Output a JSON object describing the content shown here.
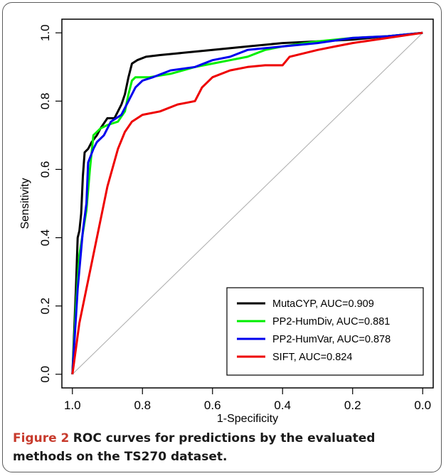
{
  "chart_data": {
    "type": "line",
    "title": "",
    "xlabel": "1-Specificity",
    "ylabel": "Sensitivity",
    "xlim": [
      1.0,
      0.0
    ],
    "ylim": [
      0.0,
      1.0
    ],
    "xticks": [
      "1.0",
      "0.8",
      "0.6",
      "0.4",
      "0.2",
      "0.0"
    ],
    "yticks": [
      "0.0",
      "0.2",
      "0.4",
      "0.6",
      "0.8",
      "1.0"
    ],
    "grid": false,
    "diagonal_reference": true,
    "legend_position": "bottom-right",
    "series": [
      {
        "name": "MutaCYP, AUC=0.909",
        "color": "#000000",
        "points": [
          [
            1.0,
            0.0
          ],
          [
            0.99,
            0.25
          ],
          [
            0.985,
            0.4
          ],
          [
            0.98,
            0.42
          ],
          [
            0.975,
            0.47
          ],
          [
            0.97,
            0.58
          ],
          [
            0.965,
            0.65
          ],
          [
            0.955,
            0.66
          ],
          [
            0.945,
            0.68
          ],
          [
            0.93,
            0.7
          ],
          [
            0.92,
            0.72
          ],
          [
            0.9,
            0.75
          ],
          [
            0.88,
            0.75
          ],
          [
            0.87,
            0.77
          ],
          [
            0.86,
            0.79
          ],
          [
            0.85,
            0.82
          ],
          [
            0.84,
            0.87
          ],
          [
            0.83,
            0.91
          ],
          [
            0.815,
            0.92
          ],
          [
            0.79,
            0.93
          ],
          [
            0.75,
            0.935
          ],
          [
            0.7,
            0.94
          ],
          [
            0.6,
            0.95
          ],
          [
            0.5,
            0.96
          ],
          [
            0.4,
            0.97
          ],
          [
            0.3,
            0.975
          ],
          [
            0.2,
            0.98
          ],
          [
            0.1,
            0.99
          ],
          [
            0.0,
            1.0
          ]
        ]
      },
      {
        "name": "PP2-HumDiv, AUC=0.881",
        "color": "#00ee00",
        "points": [
          [
            1.0,
            0.0
          ],
          [
            0.99,
            0.2
          ],
          [
            0.98,
            0.35
          ],
          [
            0.96,
            0.48
          ],
          [
            0.95,
            0.6
          ],
          [
            0.94,
            0.7
          ],
          [
            0.92,
            0.72
          ],
          [
            0.9,
            0.73
          ],
          [
            0.87,
            0.74
          ],
          [
            0.85,
            0.77
          ],
          [
            0.84,
            0.82
          ],
          [
            0.83,
            0.86
          ],
          [
            0.82,
            0.87
          ],
          [
            0.78,
            0.87
          ],
          [
            0.72,
            0.88
          ],
          [
            0.65,
            0.9
          ],
          [
            0.6,
            0.91
          ],
          [
            0.55,
            0.92
          ],
          [
            0.5,
            0.93
          ],
          [
            0.45,
            0.95
          ],
          [
            0.4,
            0.96
          ],
          [
            0.3,
            0.975
          ],
          [
            0.2,
            0.985
          ],
          [
            0.1,
            0.99
          ],
          [
            0.0,
            1.0
          ]
        ]
      },
      {
        "name": "PP2-HumVar, AUC=0.878",
        "color": "#0000ee",
        "points": [
          [
            1.0,
            0.0
          ],
          [
            0.985,
            0.25
          ],
          [
            0.97,
            0.42
          ],
          [
            0.96,
            0.5
          ],
          [
            0.955,
            0.62
          ],
          [
            0.94,
            0.66
          ],
          [
            0.93,
            0.68
          ],
          [
            0.91,
            0.7
          ],
          [
            0.89,
            0.74
          ],
          [
            0.86,
            0.76
          ],
          [
            0.85,
            0.78
          ],
          [
            0.84,
            0.8
          ],
          [
            0.82,
            0.84
          ],
          [
            0.8,
            0.86
          ],
          [
            0.77,
            0.87
          ],
          [
            0.72,
            0.89
          ],
          [
            0.65,
            0.9
          ],
          [
            0.6,
            0.92
          ],
          [
            0.55,
            0.93
          ],
          [
            0.5,
            0.95
          ],
          [
            0.4,
            0.96
          ],
          [
            0.3,
            0.97
          ],
          [
            0.2,
            0.985
          ],
          [
            0.1,
            0.99
          ],
          [
            0.0,
            1.0
          ]
        ]
      },
      {
        "name": "SIFT, AUC=0.824",
        "color": "#ee0000",
        "points": [
          [
            1.0,
            0.0
          ],
          [
            0.98,
            0.15
          ],
          [
            0.94,
            0.35
          ],
          [
            0.9,
            0.55
          ],
          [
            0.87,
            0.66
          ],
          [
            0.85,
            0.71
          ],
          [
            0.83,
            0.74
          ],
          [
            0.8,
            0.76
          ],
          [
            0.75,
            0.77
          ],
          [
            0.7,
            0.79
          ],
          [
            0.65,
            0.8
          ],
          [
            0.63,
            0.84
          ],
          [
            0.6,
            0.87
          ],
          [
            0.55,
            0.89
          ],
          [
            0.5,
            0.9
          ],
          [
            0.45,
            0.905
          ],
          [
            0.4,
            0.905
          ],
          [
            0.38,
            0.93
          ],
          [
            0.3,
            0.95
          ],
          [
            0.25,
            0.96
          ],
          [
            0.2,
            0.97
          ],
          [
            0.1,
            0.985
          ],
          [
            0.0,
            1.0
          ]
        ]
      }
    ]
  },
  "caption": {
    "figure_number": "Figure 2",
    "text": "ROC curves for predictions by the evaluated methods on the TS270 dataset."
  }
}
